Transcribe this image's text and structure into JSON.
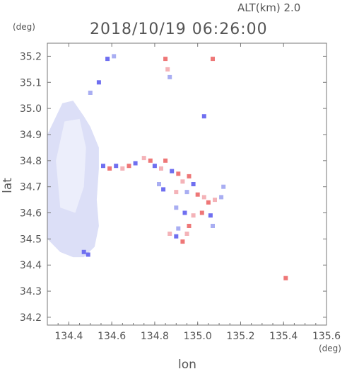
{
  "header": {
    "alt_label": "ALT(km) 2.0",
    "datetime": "2018/10/19 06:26:00",
    "y_unit": "(deg)",
    "x_unit": "(deg)"
  },
  "colors": {
    "land": "#dcdff7",
    "land_light": "#eceefb",
    "blue": "#6f6ff0",
    "light_blue": "#a9aef2",
    "red": "#ee7777",
    "pink": "#f4b3b8",
    "axis": "#777777"
  },
  "chart_data": {
    "type": "scatter",
    "title": "2018/10/19 06:26:00",
    "subtitle": "ALT(km) 2.0",
    "xlabel": "lon",
    "ylabel": "lat",
    "x_unit": "(deg)",
    "y_unit": "(deg)",
    "xlim": [
      134.3,
      135.6
    ],
    "ylim": [
      34.17,
      35.25
    ],
    "xticks": [
      134.4,
      134.6,
      134.8,
      135.0,
      135.2,
      135.4,
      135.6
    ],
    "xtick_labels": [
      "134.4",
      "134.6",
      "134.8",
      "135.0",
      "135.2",
      "135.4",
      "135.6"
    ],
    "yticks": [
      34.2,
      34.3,
      34.4,
      34.5,
      34.6,
      34.7,
      34.8,
      34.9,
      35.0,
      35.1,
      35.2
    ],
    "ytick_labels": [
      "34.2",
      "34.3",
      "34.4",
      "34.5",
      "34.6",
      "34.7",
      "34.8",
      "34.9",
      "35.0",
      "35.1",
      "35.2"
    ],
    "grid": false,
    "island_outline": [
      [
        134.37,
        35.02
      ],
      [
        134.42,
        35.03
      ],
      [
        134.47,
        34.97
      ],
      [
        134.5,
        34.93
      ],
      [
        134.54,
        34.85
      ],
      [
        134.54,
        34.77
      ],
      [
        134.53,
        34.65
      ],
      [
        134.54,
        34.55
      ],
      [
        134.52,
        34.47
      ],
      [
        134.47,
        34.43
      ],
      [
        134.42,
        34.43
      ],
      [
        134.36,
        34.45
      ],
      [
        134.3,
        34.5
      ],
      [
        134.3,
        34.9
      ]
    ],
    "echo_points": [
      {
        "lon": 134.5,
        "lat": 35.06,
        "c": "light_blue"
      },
      {
        "lon": 134.54,
        "lat": 35.1,
        "c": "blue"
      },
      {
        "lon": 134.58,
        "lat": 35.19,
        "c": "blue"
      },
      {
        "lon": 134.61,
        "lat": 35.2,
        "c": "light_blue"
      },
      {
        "lon": 134.85,
        "lat": 35.19,
        "c": "red"
      },
      {
        "lon": 134.86,
        "lat": 35.15,
        "c": "pink"
      },
      {
        "lon": 134.87,
        "lat": 35.12,
        "c": "light_blue"
      },
      {
        "lon": 135.07,
        "lat": 35.19,
        "c": "red"
      },
      {
        "lon": 135.03,
        "lat": 34.97,
        "c": "blue"
      },
      {
        "lon": 134.56,
        "lat": 34.78,
        "c": "blue"
      },
      {
        "lon": 134.59,
        "lat": 34.77,
        "c": "red"
      },
      {
        "lon": 134.62,
        "lat": 34.78,
        "c": "blue"
      },
      {
        "lon": 134.65,
        "lat": 34.77,
        "c": "pink"
      },
      {
        "lon": 134.68,
        "lat": 34.78,
        "c": "red"
      },
      {
        "lon": 134.71,
        "lat": 34.79,
        "c": "blue"
      },
      {
        "lon": 134.75,
        "lat": 34.81,
        "c": "pink"
      },
      {
        "lon": 134.78,
        "lat": 34.8,
        "c": "red"
      },
      {
        "lon": 134.8,
        "lat": 34.78,
        "c": "blue"
      },
      {
        "lon": 134.83,
        "lat": 34.77,
        "c": "pink"
      },
      {
        "lon": 134.85,
        "lat": 34.8,
        "c": "red"
      },
      {
        "lon": 134.88,
        "lat": 34.76,
        "c": "blue"
      },
      {
        "lon": 134.91,
        "lat": 34.75,
        "c": "red"
      },
      {
        "lon": 134.93,
        "lat": 34.72,
        "c": "pink"
      },
      {
        "lon": 134.96,
        "lat": 34.74,
        "c": "red"
      },
      {
        "lon": 134.98,
        "lat": 34.71,
        "c": "blue"
      },
      {
        "lon": 134.82,
        "lat": 34.71,
        "c": "light_blue"
      },
      {
        "lon": 134.84,
        "lat": 34.69,
        "c": "blue"
      },
      {
        "lon": 134.9,
        "lat": 34.68,
        "c": "pink"
      },
      {
        "lon": 134.95,
        "lat": 34.68,
        "c": "light_blue"
      },
      {
        "lon": 135.0,
        "lat": 34.67,
        "c": "red"
      },
      {
        "lon": 135.03,
        "lat": 34.66,
        "c": "pink"
      },
      {
        "lon": 135.05,
        "lat": 34.64,
        "c": "red"
      },
      {
        "lon": 135.08,
        "lat": 34.65,
        "c": "pink"
      },
      {
        "lon": 135.11,
        "lat": 34.66,
        "c": "light_blue"
      },
      {
        "lon": 134.9,
        "lat": 34.62,
        "c": "light_blue"
      },
      {
        "lon": 134.94,
        "lat": 34.6,
        "c": "blue"
      },
      {
        "lon": 134.98,
        "lat": 34.59,
        "c": "pink"
      },
      {
        "lon": 135.02,
        "lat": 34.6,
        "c": "red"
      },
      {
        "lon": 135.06,
        "lat": 34.59,
        "c": "blue"
      },
      {
        "lon": 135.07,
        "lat": 34.55,
        "c": "light_blue"
      },
      {
        "lon": 135.12,
        "lat": 34.7,
        "c": "light_blue"
      },
      {
        "lon": 134.87,
        "lat": 34.52,
        "c": "pink"
      },
      {
        "lon": 134.9,
        "lat": 34.51,
        "c": "blue"
      },
      {
        "lon": 134.93,
        "lat": 34.49,
        "c": "red"
      },
      {
        "lon": 134.95,
        "lat": 34.52,
        "c": "pink"
      },
      {
        "lon": 134.91,
        "lat": 34.54,
        "c": "light_blue"
      },
      {
        "lon": 134.96,
        "lat": 34.55,
        "c": "red"
      },
      {
        "lon": 134.49,
        "lat": 34.44,
        "c": "blue"
      },
      {
        "lon": 134.47,
        "lat": 34.45,
        "c": "blue"
      },
      {
        "lon": 135.41,
        "lat": 34.35,
        "c": "red"
      }
    ]
  }
}
